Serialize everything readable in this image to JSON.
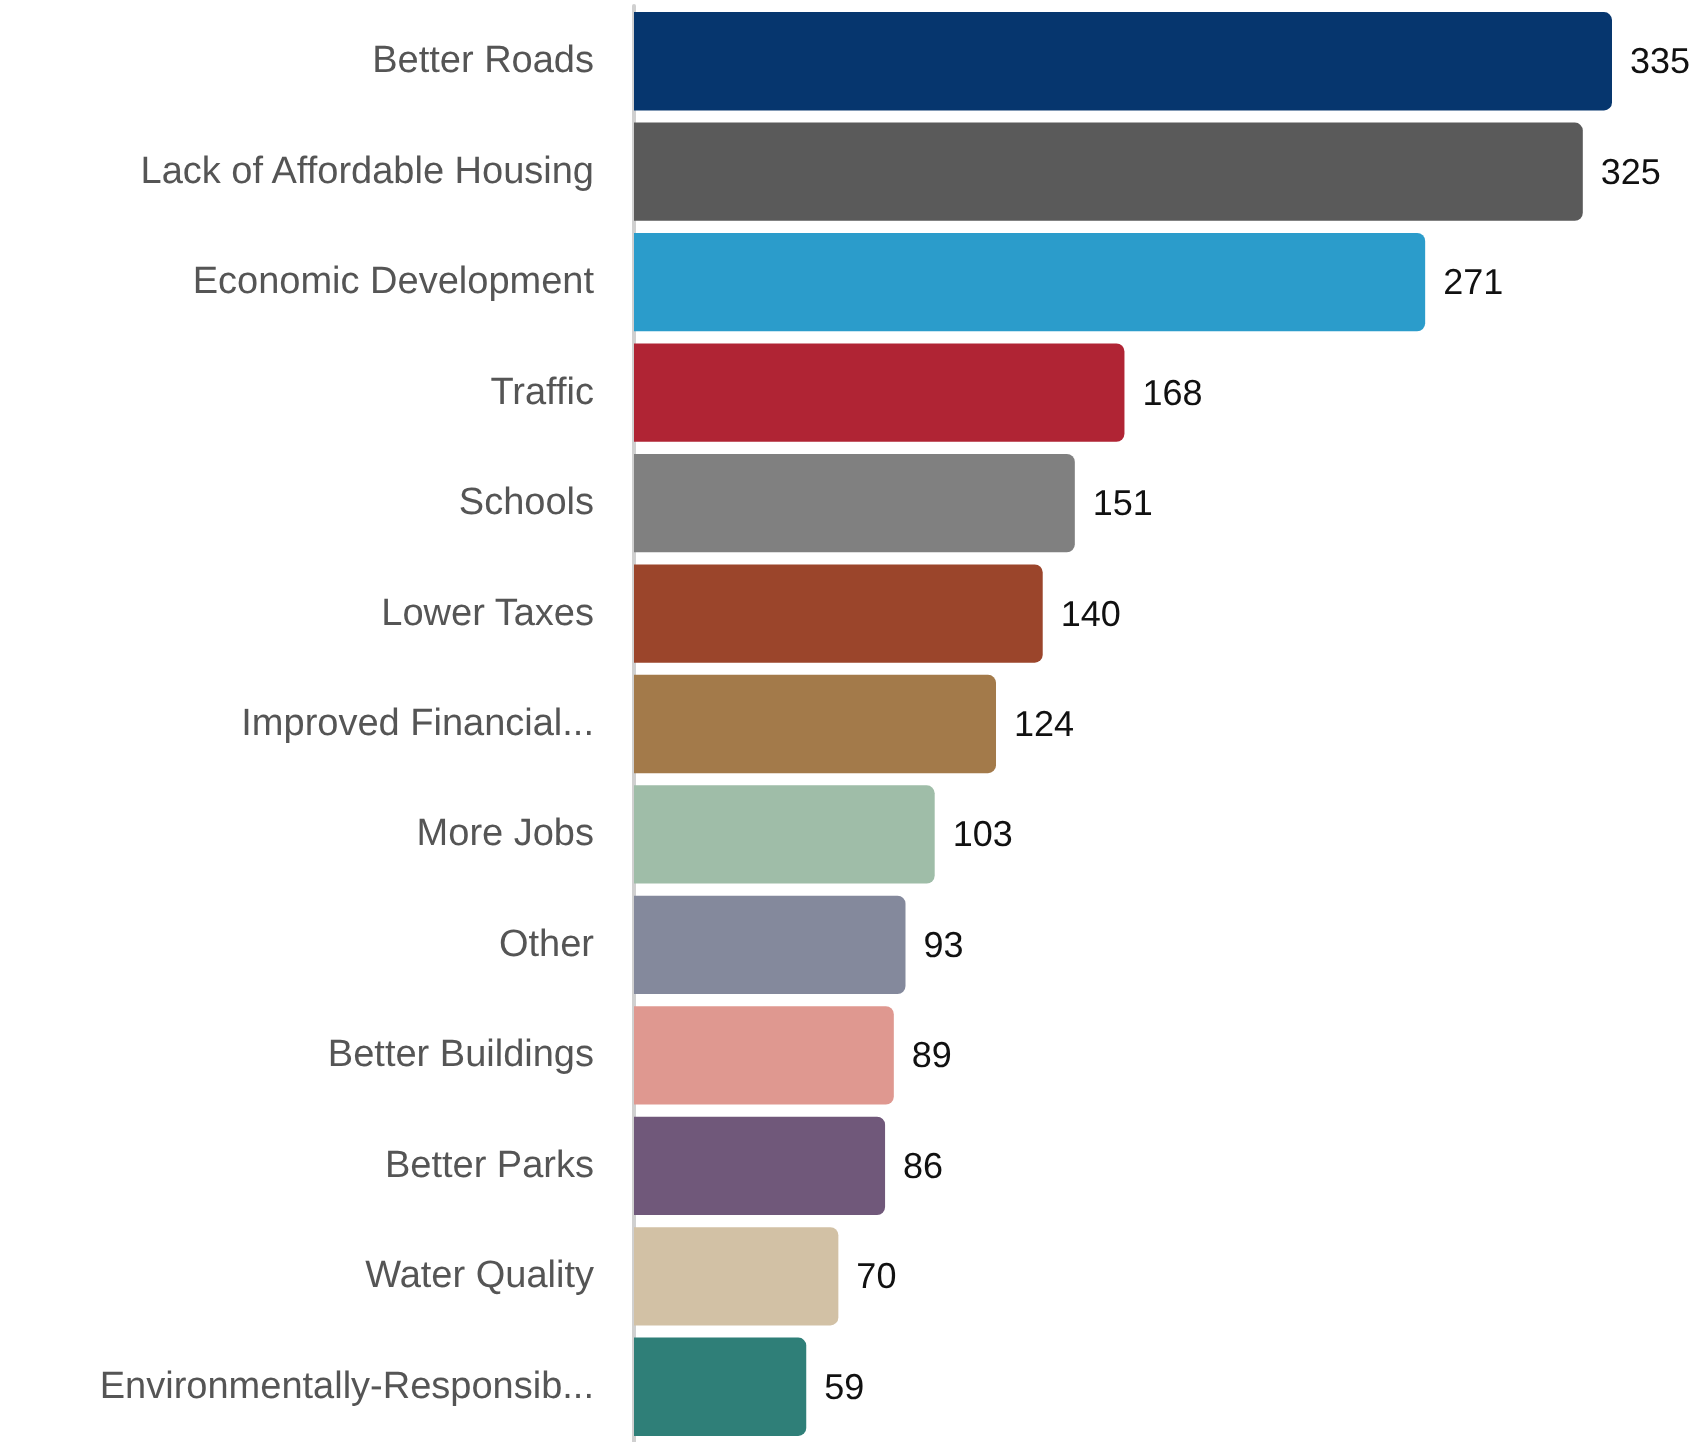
{
  "chart_data": {
    "type": "bar",
    "orientation": "horizontal",
    "data_labels": true,
    "categories": [
      "Better Roads",
      "Lack of Affordable Housing",
      "Economic Development",
      "Traffic",
      "Schools",
      "Lower Taxes",
      "Improved Financial...",
      "More Jobs",
      "Other",
      "Better Buildings",
      "Better Parks",
      "Water Quality",
      "Environmentally-Responsib..."
    ],
    "values": [
      335,
      325,
      271,
      168,
      151,
      140,
      124,
      103,
      93,
      89,
      86,
      70,
      59
    ],
    "colors": [
      "#06366e",
      "#5a5a5a",
      "#2b9ccb",
      "#b02434",
      "#808080",
      "#9b452b",
      "#a37a4a",
      "#9fbda8",
      "#84899c",
      "#df9890",
      "#70587a",
      "#d2c1a5",
      "#2f7f78"
    ]
  }
}
